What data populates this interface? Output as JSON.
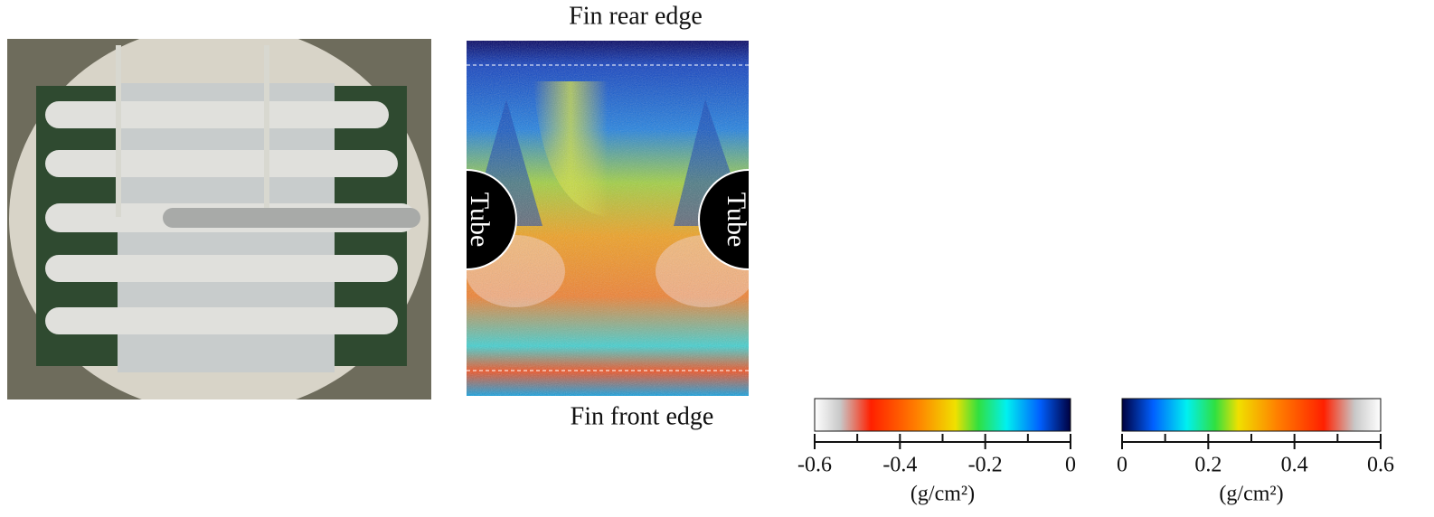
{
  "heatmap": {
    "top_label": "Fin  rear edge",
    "bottom_label": "Fin  front edge",
    "tube_label": "Tube"
  },
  "colorbars": [
    {
      "lim": [
        -0.6,
        0
      ],
      "ticks": [
        -0.6,
        -0.4,
        -0.2,
        0
      ],
      "minor_ticks": [
        -0.5,
        -0.3,
        -0.1
      ],
      "unit": "(g/cm²)",
      "colors": [
        "#ffffff",
        "#c8c8c8",
        "#ff2000",
        "#ff8000",
        "#f0e000",
        "#30e040",
        "#00f0f0",
        "#0060ff",
        "#000040"
      ]
    },
    {
      "lim": [
        0,
        0.6
      ],
      "ticks": [
        0,
        0.2,
        0.4,
        0.6
      ],
      "minor_ticks": [
        0.1,
        0.3,
        0.5
      ],
      "unit": "(g/cm²)",
      "colors": [
        "#000040",
        "#0060ff",
        "#00f0f0",
        "#30e040",
        "#f0e000",
        "#ff8000",
        "#ff2000",
        "#c8c8c8",
        "#ffffff"
      ]
    }
  ]
}
